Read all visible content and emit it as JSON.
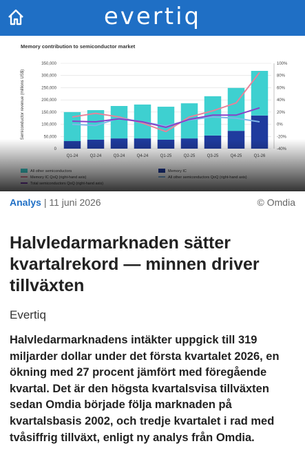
{
  "header": {
    "logo": "evertiq"
  },
  "chart_data": {
    "type": "bar",
    "stacked": true,
    "title": "Memory contribution to semiconductor market",
    "y_label": "Semiconductor revenue (millions US$)",
    "categories": [
      "Q1-24",
      "Q2-24",
      "Q3-24",
      "Q4-24",
      "Q1-25",
      "Q2-25",
      "Q3-25",
      "Q4-25",
      "Q1-26"
    ],
    "series": [
      {
        "name": "Memory IC",
        "color": "#1f3b9e",
        "values": [
          31000,
          37000,
          42000,
          42000,
          37000,
          42000,
          54000,
          73000,
          136000
        ]
      },
      {
        "name": "All other semiconductors",
        "color": "#3ed0d0",
        "values": [
          119000,
          121000,
          133000,
          139000,
          135000,
          144000,
          161000,
          176000,
          183000
        ]
      },
      {
        "name": "Memory IC QoQ (right-hand axis)",
        "color": "#e8829a",
        "axis": "y2",
        "values": [
          12,
          18,
          12,
          2,
          -12,
          12,
          22,
          35,
          85
        ]
      },
      {
        "name": "All other semiconductors QoQ (right-hand axis)",
        "color": "#7fb6e8",
        "axis": "y2",
        "values": [
          0,
          -2,
          10,
          4,
          -3,
          7,
          12,
          10,
          4
        ]
      },
      {
        "name": "Total semiconductors QoQ (right-hand axis)",
        "color": "#8a3fc8",
        "axis": "y2",
        "values": [
          5,
          4,
          9,
          4,
          -5,
          8,
          15,
          15,
          27
        ]
      }
    ],
    "ylim": [
      0,
      350000
    ],
    "yticks": [
      0,
      {
        "value": 50000,
        "label": "50,000"
      },
      {
        "value": 100000,
        "label": "100,000"
      },
      {
        "value": 150000,
        "label": "150,000"
      },
      {
        "value": 200000,
        "label": "200,000"
      },
      {
        "value": 250000,
        "label": "250,000"
      },
      {
        "value": 300000,
        "label": "300,000"
      },
      {
        "value": 350000,
        "label": "350,000"
      }
    ],
    "y2lim": [
      -40,
      100
    ],
    "y2ticks": [
      {
        "value": -40,
        "label": "-40%"
      },
      {
        "value": -20,
        "label": "-20%"
      },
      {
        "value": 0,
        "label": "0%"
      },
      {
        "value": 20,
        "label": "20%"
      },
      {
        "value": 40,
        "label": "40%"
      },
      {
        "value": 60,
        "label": "60%"
      },
      {
        "value": 80,
        "label": "80%"
      },
      {
        "value": 100,
        "label": "100%"
      }
    ],
    "grid": true
  },
  "meta": {
    "section": "Analys",
    "date": "| 11 juni 2026",
    "credit": "© Omdia"
  },
  "article": {
    "title": "Halvledarmarknaden sätter kvartalrekord — minnen driver tillväxten",
    "author": "Evertiq",
    "lead": "Halvledarmarknadens intäkter uppgick till 319 miljarder dollar under det första kvartalet 2026, en ökning med 27 procent jämfört med föregående kvartal. Det är den högsta kvartalsvisa tillväxten sedan Omdia började följa marknaden på kvartalsbasis 2002, och tredje kvartalet i rad med tvåsiffrig tillväxt, enligt ny analys från Omdia."
  }
}
